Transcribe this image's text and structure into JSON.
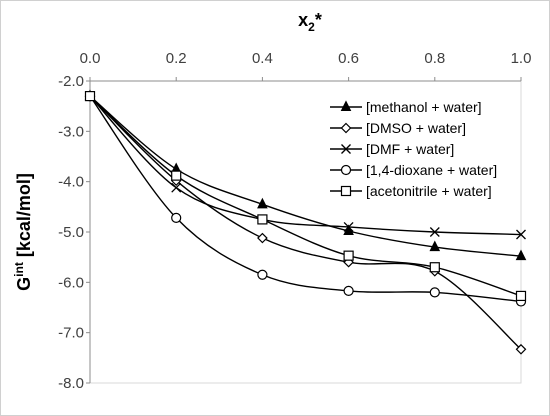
{
  "chart_data": {
    "type": "line",
    "xlabel": "x2*",
    "ylabel": "Gint [kcal/mol]",
    "xlim": [
      0.0,
      1.0
    ],
    "ylim": [
      -8.0,
      -2.0
    ],
    "x_ticks": [
      "0.0",
      "0.2",
      "0.4",
      "0.6",
      "0.8",
      "1.0"
    ],
    "y_ticks": [
      "-2.0",
      "-3.0",
      "-4.0",
      "-5.0",
      "-6.0",
      "-7.0",
      "-8.0"
    ],
    "x_axis_position": "top",
    "grid": false,
    "legend_position": "top-right",
    "x": [
      0.0,
      0.2,
      0.4,
      0.6,
      0.8,
      1.0
    ],
    "series": [
      {
        "name": "[methanol + water]",
        "marker": "filled-triangle",
        "values": [
          -2.3,
          -3.75,
          -4.45,
          -4.98,
          -5.3,
          -5.48
        ]
      },
      {
        "name": "[DMSO + water]",
        "marker": "open-diamond",
        "values": [
          -2.3,
          -3.98,
          -5.12,
          -5.6,
          -5.78,
          -7.33
        ]
      },
      {
        "name": "[DMF + water]",
        "marker": "x-cross",
        "values": [
          -2.3,
          -4.12,
          -4.75,
          -4.9,
          -5.0,
          -5.05
        ]
      },
      {
        "name": "[1,4-dioxane + water]",
        "marker": "open-circle",
        "values": [
          -2.3,
          -4.72,
          -5.85,
          -6.17,
          -6.2,
          -6.38
        ]
      },
      {
        "name": "[acetonitrile + water]",
        "marker": "open-square",
        "values": [
          -2.3,
          -3.88,
          -4.75,
          -5.47,
          -5.7,
          -6.27
        ]
      }
    ]
  }
}
